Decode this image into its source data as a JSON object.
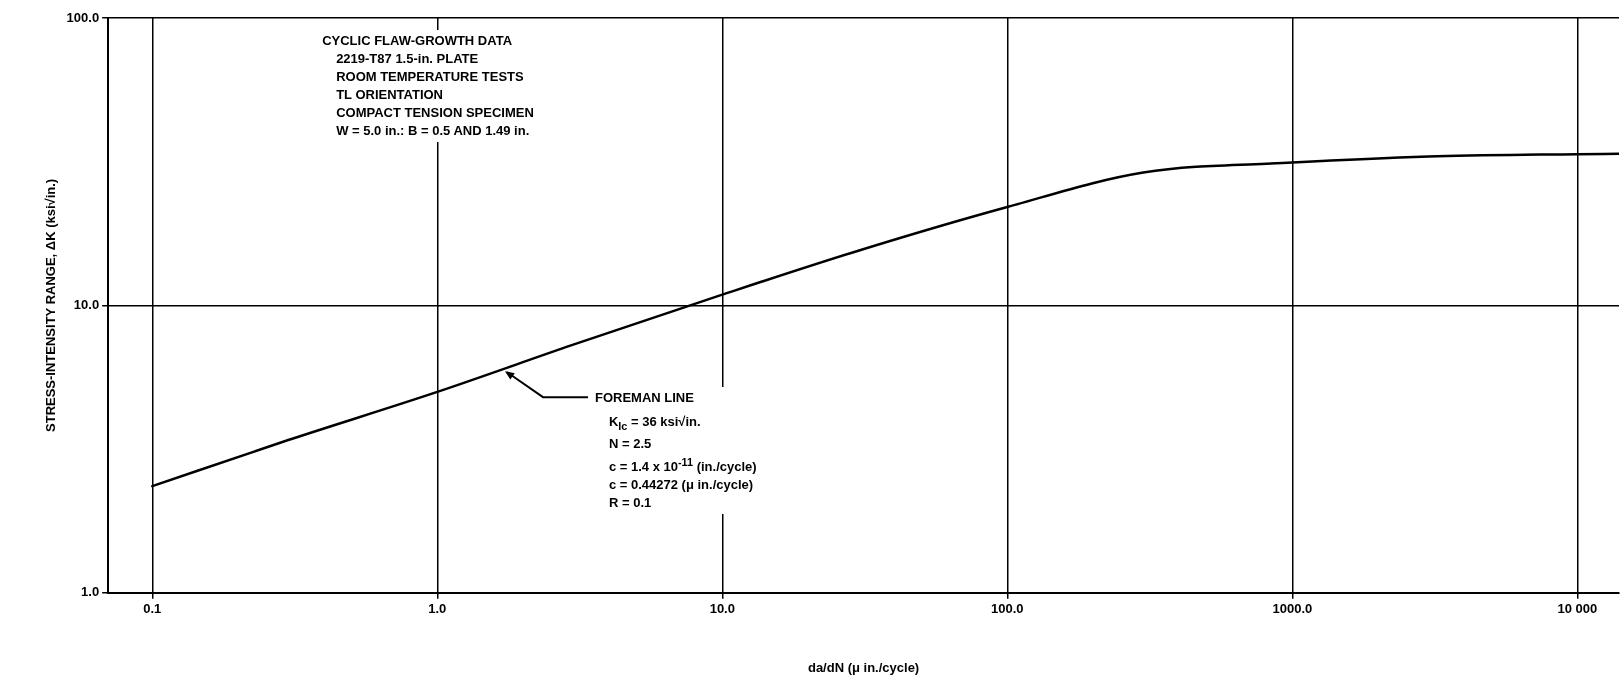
{
  "chart_data": {
    "type": "line",
    "title": "CYCLIC FLAW-GROWTH DATA",
    "xlabel": "da/dN (μ in./cycle)",
    "ylabel": "STRESS-INTENSITY RANGE, ΔK (ksi√in.)",
    "x": [
      0.1,
      0.3,
      1,
      3,
      10,
      30,
      100,
      300,
      1000,
      3000,
      10000,
      14000
    ],
    "series": [
      {
        "color": "#000000",
        "values": [
          2.35,
          3.4,
          5.0,
          7.3,
          10.9,
          15.5,
          22,
          29,
          31.4,
          33,
          33.6,
          33.7
        ]
      }
    ],
    "xlim": [
      0.07,
      14000
    ],
    "ylim": [
      1,
      100
    ],
    "xticks": [
      0.1,
      {
        "value": 1,
        "label": "1.0"
      },
      {
        "value": 10,
        "label": "10.0"
      },
      {
        "value": 100,
        "label": "100.0"
      },
      {
        "value": 1000,
        "label": "1000.0"
      },
      {
        "value": 10000,
        "label": "10 000"
      }
    ],
    "yticks": [
      {
        "value": 1,
        "label": "1.0"
      },
      {
        "value": 10,
        "label": "10.0"
      },
      {
        "value": 100,
        "label": "100.0"
      }
    ],
    "log": "xy",
    "grid": true,
    "marker": "none",
    "line_style": "solid",
    "annotations": [
      "2219-T87   1.5-in. PLATE",
      "ROOM TEMPERATURE TESTS",
      "TL ORIENTATION",
      "COMPACT TENSION SPECIMEN",
      "W = 5.0 in.:  B = 0.5 AND 1.49 in.",
      {
        "text": "FOREMAN LINE",
        "x": 1.7,
        "y": 6
      },
      "K$_{Ic}$ = 36 ksi√in.",
      "N = 2.5",
      "c = 1.4 x 10$^{-11}$ (in./cycle)",
      "c = 0.44272 (μ in./cycle)",
      "R = 0.1"
    ]
  }
}
